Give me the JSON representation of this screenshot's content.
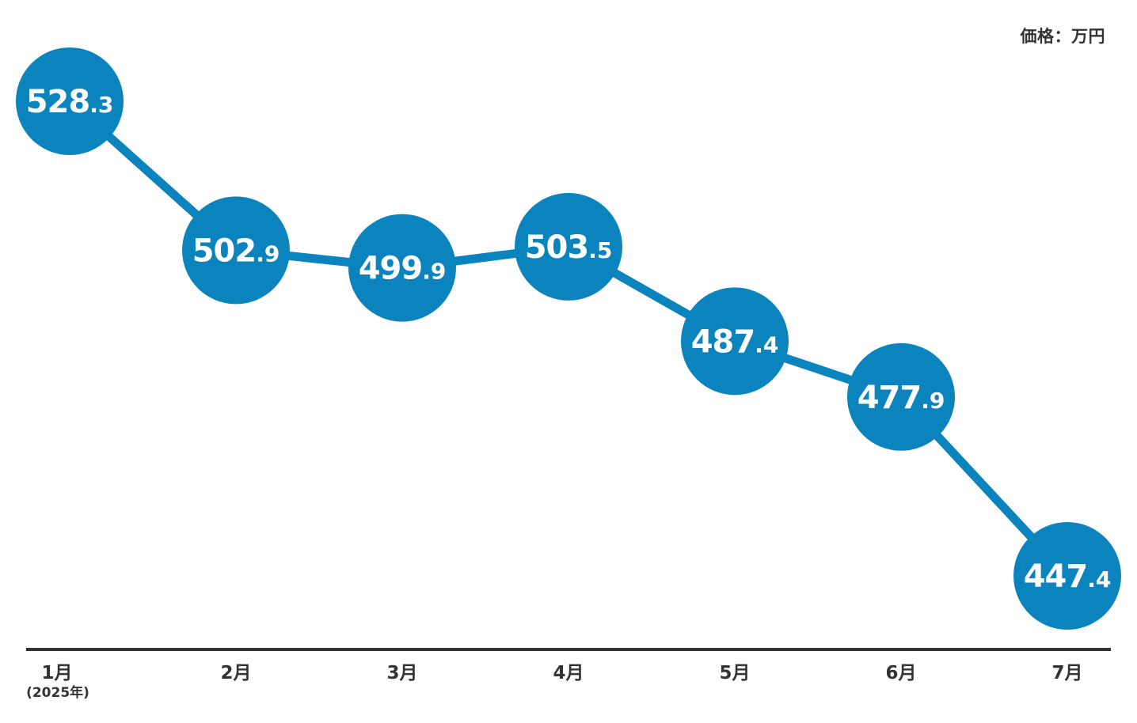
{
  "unit_label": "価格：万円",
  "colors": {
    "accent": "#0b84bd",
    "axis": "#333333",
    "label_text": "#333333",
    "value_text": "#ffffff"
  },
  "chart_data": {
    "type": "line",
    "title": "",
    "xlabel": "",
    "ylabel": "",
    "unit": "価格：万円",
    "categories": [
      "1月",
      "2月",
      "3月",
      "4月",
      "5月",
      "6月",
      "7月"
    ],
    "category_sublabels": [
      "(2025年)",
      "",
      "",
      "",
      "",
      "",
      ""
    ],
    "values": [
      528.3,
      502.9,
      499.9,
      503.5,
      487.4,
      477.9,
      447.4
    ],
    "ylim": [
      447.4,
      528.3
    ],
    "grid": false,
    "legend": "none",
    "marker": "large-filled-circle-with-value-label"
  }
}
